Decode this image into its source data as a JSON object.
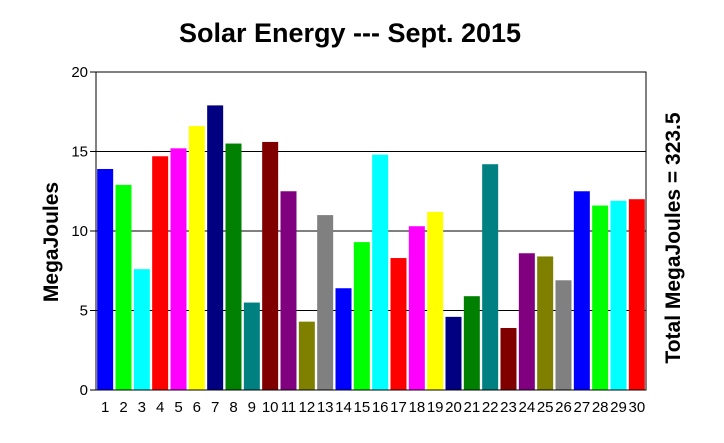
{
  "chart_data": {
    "type": "bar",
    "title": "Solar Energy --- Sept. 2015",
    "ylabel": "MegaJoules",
    "right_label": "Total MegaJoules = 323.5",
    "categories": [
      "1",
      "2",
      "3",
      "4",
      "5",
      "6",
      "7",
      "8",
      "9",
      "10",
      "11",
      "12",
      "13",
      "14",
      "15",
      "16",
      "17",
      "18",
      "19",
      "20",
      "21",
      "22",
      "23",
      "24",
      "25",
      "26",
      "27",
      "28",
      "29",
      "30"
    ],
    "values": [
      13.9,
      12.9,
      7.6,
      14.7,
      15.2,
      16.6,
      17.9,
      15.5,
      5.5,
      15.6,
      12.5,
      4.3,
      11.0,
      6.4,
      9.3,
      14.8,
      8.3,
      10.3,
      11.2,
      4.6,
      5.9,
      14.2,
      3.9,
      8.6,
      8.4,
      6.9,
      12.5,
      11.6,
      11.9,
      12.0
    ],
    "colors": [
      "#0000ff",
      "#00ff00",
      "#00ffff",
      "#ff0000",
      "#ff00ff",
      "#ffff00",
      "#000080",
      "#008000",
      "#008080",
      "#800000",
      "#800080",
      "#808000",
      "#808080",
      "#0000ff",
      "#00ff00",
      "#00ffff",
      "#ff0000",
      "#ff00ff",
      "#ffff00",
      "#000080",
      "#008000",
      "#008080",
      "#800000",
      "#800080",
      "#808000",
      "#808080",
      "#0000ff",
      "#00ff00",
      "#00ffff",
      "#ff0000"
    ],
    "ylim": [
      0,
      20
    ],
    "yticks": [
      "0",
      "5",
      "10",
      "15",
      "20"
    ],
    "grid": true
  }
}
